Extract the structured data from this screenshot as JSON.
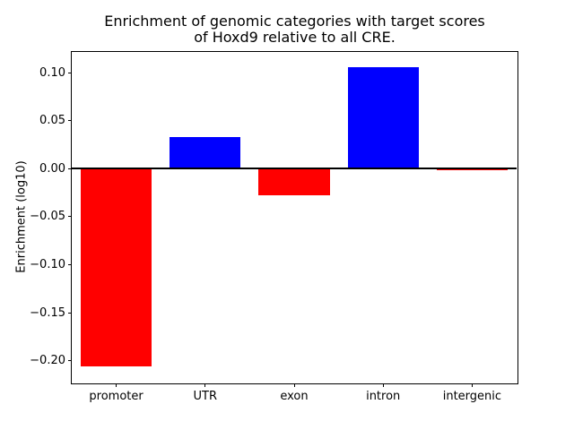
{
  "chart_data": {
    "type": "bar",
    "title": "Enrichment of genomic categories with target scores\nof Hoxd9 relative to all CRE.",
    "xlabel": "",
    "ylabel": "Enrichment (log10)",
    "categories": [
      "promoter",
      "UTR",
      "exon",
      "intron",
      "intergenic"
    ],
    "values": [
      -0.206,
      0.033,
      -0.028,
      0.106,
      -0.002
    ],
    "bar_colors": [
      "#ff0000",
      "#0000ff",
      "#ff0000",
      "#0000ff",
      "#ff0000"
    ],
    "positive_color": "#0000ff",
    "negative_color": "#ff0000",
    "ylim": [
      -0.223,
      0.122
    ],
    "yticks": [
      {
        "value": 0.1,
        "label": "0.10"
      },
      {
        "value": 0.05,
        "label": "0.05"
      },
      {
        "value": 0.0,
        "label": "0.00"
      },
      {
        "value": -0.05,
        "label": "−0.05"
      },
      {
        "value": -0.1,
        "label": "−0.10"
      },
      {
        "value": -0.15,
        "label": "−0.15"
      },
      {
        "value": -0.2,
        "label": "−0.20"
      }
    ],
    "bar_width_fraction": 0.8,
    "zero_line": true,
    "grid": false,
    "legend": null,
    "axis_color": "#000000",
    "background": "#ffffff"
  }
}
